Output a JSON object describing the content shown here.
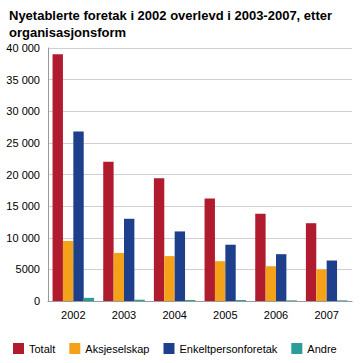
{
  "chart_data": {
    "type": "bar",
    "title": "Nyetablerte foretak i 2002 overlevd i 2003-2007, etter organisasjonsform",
    "categories": [
      "2002",
      "2003",
      "2004",
      "2005",
      "2006",
      "2007"
    ],
    "series": [
      {
        "name": "Totalt",
        "color": "#b01c2e",
        "values": [
          39000,
          22000,
          19400,
          16200,
          13800,
          12300
        ]
      },
      {
        "name": "Aksjeselskap",
        "color": "#f5a21b",
        "values": [
          9500,
          7600,
          7100,
          6300,
          5500,
          5000
        ]
      },
      {
        "name": "Enkeltpersonforetak",
        "color": "#1d3f8c",
        "values": [
          26800,
          13000,
          11000,
          8900,
          7400,
          6400
        ]
      },
      {
        "name": "Andre",
        "color": "#2a9c9a",
        "values": [
          500,
          200,
          150,
          150,
          100,
          100
        ]
      }
    ],
    "ylim": [
      0,
      40000
    ],
    "yticks": [
      0,
      5000,
      {
        "value": 10000,
        "label": "10 000"
      },
      {
        "value": 15000,
        "label": "15 000"
      },
      {
        "value": 20000,
        "label": "20 000"
      },
      {
        "value": 25000,
        "label": "25 000"
      },
      {
        "value": 30000,
        "label": "30 000"
      },
      {
        "value": 35000,
        "label": "35 000"
      },
      {
        "value": 40000,
        "label": "40 000"
      }
    ],
    "grid": true,
    "legend": "bottom"
  }
}
